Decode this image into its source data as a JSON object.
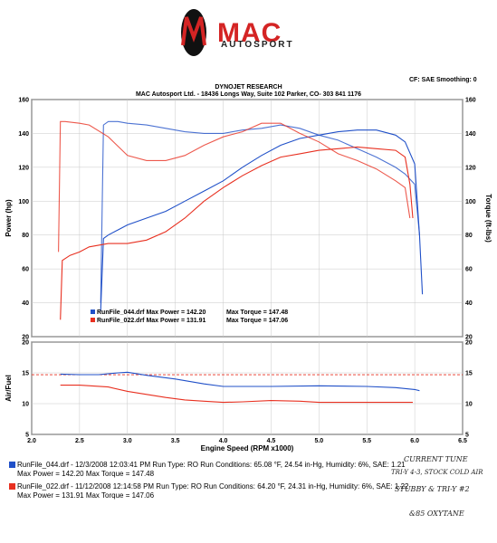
{
  "logo": {
    "name": "MAC",
    "sub": "AUTOSPORT"
  },
  "header": {
    "company": "DYNOJET RESEARCH",
    "address": "MAC Autosport Ltd. - 18436 Longs Way, Suite 102 Parker, CO- 303 841 1176",
    "correction": "CF: SAE  Smoothing: 0"
  },
  "colors": {
    "run044": "#2050c8",
    "run022": "#e83020"
  },
  "chart_data": [
    {
      "type": "line",
      "name": "power-torque",
      "xlabel": "",
      "ylabel": "Power (hp)",
      "y2label": "Torque (ft-lbs)",
      "xlim": [
        2.0,
        6.5
      ],
      "ylim": [
        20,
        160
      ],
      "y2lim": [
        20,
        160
      ],
      "yticks": [
        20,
        40,
        60,
        80,
        100,
        120,
        140,
        160
      ],
      "legend_position": "bottom-left",
      "grid": true,
      "legend": [
        {
          "label": "RunFile_044.drf Max Power = 142.20",
          "torque": "Max Torque = 147.48"
        },
        {
          "label": "RunFile_022.drf Max Power = 131.91",
          "torque": "Max Torque = 147.06"
        }
      ],
      "series": [
        {
          "run": "044",
          "kind": "power",
          "x": [
            2.72,
            2.75,
            2.8,
            2.9,
            3.0,
            3.2,
            3.4,
            3.6,
            3.8,
            4.0,
            4.2,
            4.4,
            4.6,
            4.8,
            5.0,
            5.2,
            5.4,
            5.6,
            5.8,
            5.9,
            6.0,
            6.05,
            6.08
          ],
          "y": [
            35,
            78,
            80,
            83,
            86,
            90,
            94,
            100,
            106,
            112,
            120,
            127,
            133,
            137,
            139,
            141,
            142,
            142,
            139,
            135,
            122,
            80,
            45
          ]
        },
        {
          "run": "044",
          "kind": "torque",
          "x": [
            2.72,
            2.75,
            2.8,
            2.9,
            3.0,
            3.2,
            3.4,
            3.6,
            3.8,
            4.0,
            4.2,
            4.4,
            4.6,
            4.8,
            5.0,
            5.2,
            5.4,
            5.6,
            5.8,
            5.9,
            6.0,
            6.05
          ],
          "y": [
            40,
            145,
            147,
            147,
            146,
            145,
            143,
            141,
            140,
            140,
            142,
            143,
            145,
            143,
            139,
            136,
            131,
            126,
            120,
            116,
            110,
            80
          ]
        },
        {
          "run": "022",
          "kind": "power",
          "x": [
            2.3,
            2.32,
            2.4,
            2.5,
            2.6,
            2.8,
            3.0,
            3.2,
            3.4,
            3.6,
            3.8,
            4.0,
            4.2,
            4.4,
            4.6,
            4.8,
            5.0,
            5.2,
            5.4,
            5.6,
            5.8,
            5.9,
            5.95,
            5.98
          ],
          "y": [
            30,
            65,
            68,
            70,
            73,
            75,
            75,
            77,
            82,
            90,
            100,
            108,
            115,
            121,
            126,
            128,
            130,
            131,
            132,
            131,
            130,
            126,
            110,
            90
          ]
        },
        {
          "run": "022",
          "kind": "torque",
          "x": [
            2.28,
            2.3,
            2.35,
            2.5,
            2.6,
            2.8,
            3.0,
            3.2,
            3.4,
            3.6,
            3.8,
            4.0,
            4.2,
            4.4,
            4.6,
            4.8,
            5.0,
            5.2,
            5.4,
            5.6,
            5.8,
            5.9,
            5.95
          ],
          "y": [
            70,
            147,
            147,
            146,
            145,
            138,
            127,
            124,
            124,
            127,
            133,
            138,
            141,
            146,
            146,
            140,
            135,
            128,
            124,
            119,
            112,
            108,
            90
          ]
        }
      ]
    },
    {
      "type": "line",
      "name": "air-fuel",
      "xlabel": "Engine Speed (RPM x1000)",
      "ylabel": "Air/Fuel",
      "xlim": [
        2.0,
        6.5
      ],
      "ylim": [
        5,
        20
      ],
      "xticks": [
        "2.0",
        "2.5",
        "3.0",
        "3.5",
        "4.0",
        "4.5",
        "5.0",
        "5.5",
        "6.0",
        "6.5"
      ],
      "yticks": [
        5,
        10,
        15,
        20
      ],
      "reference_line": 14.7,
      "grid": true,
      "series": [
        {
          "run": "044",
          "x": [
            2.3,
            2.5,
            2.7,
            2.9,
            3.0,
            3.2,
            3.5,
            3.8,
            4.0,
            4.5,
            5.0,
            5.5,
            5.8,
            6.0,
            6.05
          ],
          "y": [
            14.8,
            14.7,
            14.7,
            15.0,
            15.1,
            14.6,
            14.0,
            13.2,
            12.8,
            12.8,
            12.9,
            12.8,
            12.6,
            12.3,
            12.1
          ]
        },
        {
          "run": "022",
          "x": [
            2.3,
            2.5,
            2.8,
            3.0,
            3.2,
            3.4,
            3.6,
            3.8,
            4.0,
            4.2,
            4.5,
            4.8,
            5.0,
            5.5,
            5.98
          ],
          "y": [
            13.0,
            13.0,
            12.7,
            12.0,
            11.5,
            11.0,
            10.6,
            10.4,
            10.2,
            10.3,
            10.5,
            10.4,
            10.2,
            10.2,
            10.2
          ]
        }
      ]
    }
  ],
  "runs": [
    {
      "line1": "RunFile_044.drf - 12/3/2008 12:03:41 PM  Run Type: RO  Run Conditions: 65.08 °F, 24.54 in-Hg,  Humidity:  6%, SAE: 1.21",
      "line2": "Max Power = 142.20   Max Torque = 147.48"
    },
    {
      "line1": "RunFile_022.drf - 11/12/2008 12:14:58 PM  Run Type: RO  Run Conditions: 64.20 °F, 24.31 in-Hg,  Humidity:  6%, SAE: 1.22",
      "line2": "Max Power = 131.91   Max Torque = 147.06"
    }
  ],
  "handwritten": {
    "note1": "CURRENT TUNE",
    "note2": "TRI-Y 4-3, STOCK COLD AIR",
    "note3": "STUBBY & TRI-Y #2",
    "note4": "&85 OXYTANE"
  }
}
